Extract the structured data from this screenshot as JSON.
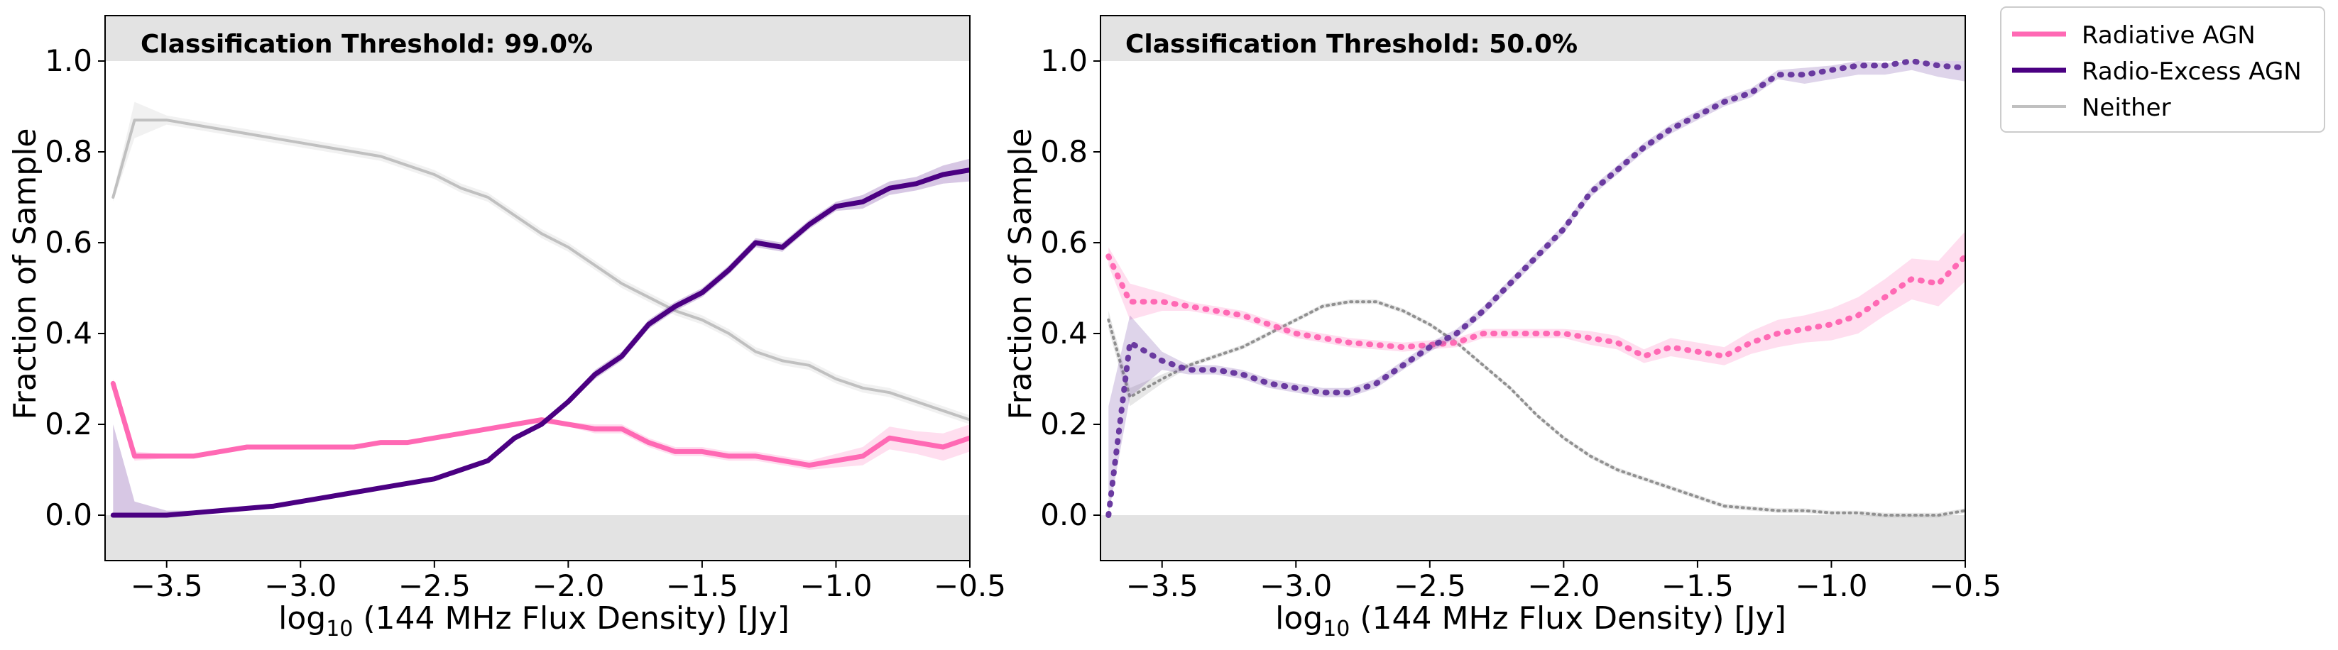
{
  "chart_data": [
    {
      "type": "line",
      "title": "Classification Threshold: 99.0%",
      "xlabel_main": "log",
      "xlabel_sub": "10",
      "xlabel_rest": " (144 MHz Flux Density) [Jy]",
      "ylabel": "Fraction of Sample",
      "xlim": [
        -3.73,
        -0.5
      ],
      "ylim": [
        -0.1,
        1.1
      ],
      "xticks": [
        -3.5,
        -3.0,
        -2.5,
        -2.0,
        -1.5,
        -1.0,
        -0.5
      ],
      "xtick_labels": [
        "−3.5",
        "−3.0",
        "−2.5",
        "−2.0",
        "−1.5",
        "−1.0",
        "−0.5"
      ],
      "yticks": [
        0.0,
        0.2,
        0.4,
        0.6,
        0.8,
        1.0
      ],
      "ytick_labels": [
        "0.0",
        "0.2",
        "0.4",
        "0.6",
        "0.8",
        "1.0"
      ],
      "shaded_regions": [
        {
          "y0": 1.0,
          "y1": 1.1
        },
        {
          "y0": -0.1,
          "y1": 0.0
        }
      ],
      "x": [
        -3.7,
        -3.62,
        -3.5,
        -3.4,
        -3.3,
        -3.2,
        -3.1,
        -3.0,
        -2.9,
        -2.8,
        -2.7,
        -2.6,
        -2.5,
        -2.4,
        -2.3,
        -2.2,
        -2.1,
        -2.0,
        -1.9,
        -1.8,
        -1.7,
        -1.6,
        -1.5,
        -1.4,
        -1.3,
        -1.2,
        -1.1,
        -1.0,
        -0.9,
        -0.8,
        -0.7,
        -0.6,
        -0.5
      ],
      "series": [
        {
          "name": "Neither",
          "style": "solid",
          "color": "#c0c0c0",
          "width": 4,
          "values": [
            0.7,
            0.87,
            0.87,
            0.86,
            0.85,
            0.84,
            0.83,
            0.82,
            0.81,
            0.8,
            0.79,
            0.77,
            0.75,
            0.72,
            0.7,
            0.66,
            0.62,
            0.59,
            0.55,
            0.51,
            0.48,
            0.45,
            0.43,
            0.4,
            0.36,
            0.34,
            0.33,
            0.3,
            0.28,
            0.27,
            0.25,
            0.23,
            0.21
          ],
          "band": [
            0.01,
            0.04,
            0.01,
            0.01,
            0.01,
            0.01,
            0.01,
            0.01,
            0.01,
            0.01,
            0.01,
            0.01,
            0.01,
            0.01,
            0.01,
            0.01,
            0.01,
            0.01,
            0.01,
            0.01,
            0.01,
            0.01,
            0.01,
            0.01,
            0.01,
            0.01,
            0.01,
            0.01,
            0.01,
            0.01,
            0.01,
            0.01,
            0.01
          ]
        },
        {
          "name": "Radiative AGN",
          "style": "solid",
          "color": "#ff69b4",
          "width": 7,
          "values": [
            0.29,
            0.13,
            0.13,
            0.13,
            0.14,
            0.15,
            0.15,
            0.15,
            0.15,
            0.15,
            0.16,
            0.16,
            0.17,
            0.18,
            0.19,
            0.2,
            0.21,
            0.2,
            0.19,
            0.19,
            0.16,
            0.14,
            0.14,
            0.13,
            0.13,
            0.12,
            0.11,
            0.12,
            0.13,
            0.17,
            0.16,
            0.15,
            0.17
          ],
          "band": [
            0.01,
            0.01,
            0.005,
            0.005,
            0.005,
            0.005,
            0.005,
            0.005,
            0.005,
            0.005,
            0.005,
            0.005,
            0.005,
            0.005,
            0.005,
            0.005,
            0.005,
            0.005,
            0.01,
            0.01,
            0.01,
            0.01,
            0.01,
            0.01,
            0.01,
            0.01,
            0.01,
            0.015,
            0.02,
            0.025,
            0.025,
            0.03,
            0.03
          ]
        },
        {
          "name": "Radio-Excess AGN",
          "style": "solid",
          "color": "#4b0082",
          "width": 7,
          "values": [
            0.0,
            0.0,
            0.0,
            0.005,
            0.01,
            0.015,
            0.02,
            0.03,
            0.04,
            0.05,
            0.06,
            0.07,
            0.08,
            0.1,
            0.12,
            0.17,
            0.2,
            0.25,
            0.31,
            0.35,
            0.42,
            0.46,
            0.49,
            0.54,
            0.6,
            0.59,
            0.64,
            0.68,
            0.69,
            0.72,
            0.73,
            0.75,
            0.76
          ],
          "band_upper": [
            0.2,
            0.03,
            0.01,
            0.005,
            0.005,
            0.005,
            0.005,
            0.005,
            0.005,
            0.005,
            0.005,
            0.005,
            0.005,
            0.005,
            0.005,
            0.005,
            0.005,
            0.005,
            0.01,
            0.01,
            0.01,
            0.01,
            0.01,
            0.01,
            0.01,
            0.01,
            0.01,
            0.01,
            0.015,
            0.015,
            0.015,
            0.02,
            0.025
          ],
          "band_lower": [
            0.0,
            0.0,
            0.0,
            0.005,
            0.005,
            0.005,
            0.005,
            0.005,
            0.005,
            0.005,
            0.005,
            0.005,
            0.005,
            0.005,
            0.005,
            0.005,
            0.005,
            0.005,
            0.01,
            0.01,
            0.01,
            0.01,
            0.01,
            0.01,
            0.01,
            0.01,
            0.01,
            0.01,
            0.015,
            0.015,
            0.015,
            0.02,
            0.025
          ]
        }
      ]
    },
    {
      "type": "line",
      "title": "Classification Threshold: 50.0%",
      "xlabel_main": "log",
      "xlabel_sub": "10",
      "xlabel_rest": " (144 MHz Flux Density) [Jy]",
      "ylabel": "Fraction of Sample",
      "xlim": [
        -3.73,
        -0.5
      ],
      "ylim": [
        -0.1,
        1.1
      ],
      "xticks": [
        -3.5,
        -3.0,
        -2.5,
        -2.0,
        -1.5,
        -1.0,
        -0.5
      ],
      "xtick_labels": [
        "−3.5",
        "−3.0",
        "−2.5",
        "−2.0",
        "−1.5",
        "−1.0",
        "−0.5"
      ],
      "yticks": [
        0.0,
        0.2,
        0.4,
        0.6,
        0.8,
        1.0
      ],
      "ytick_labels": [
        "0.0",
        "0.2",
        "0.4",
        "0.6",
        "0.8",
        "1.0"
      ],
      "shaded_regions": [
        {
          "y0": 1.0,
          "y1": 1.1
        },
        {
          "y0": -0.1,
          "y1": 0.0
        }
      ],
      "x": [
        -3.7,
        -3.62,
        -3.5,
        -3.4,
        -3.3,
        -3.2,
        -3.1,
        -3.0,
        -2.9,
        -2.8,
        -2.7,
        -2.6,
        -2.5,
        -2.4,
        -2.3,
        -2.2,
        -2.1,
        -2.0,
        -1.9,
        -1.8,
        -1.7,
        -1.6,
        -1.5,
        -1.4,
        -1.3,
        -1.2,
        -1.1,
        -1.0,
        -0.9,
        -0.8,
        -0.7,
        -0.6,
        -0.5
      ],
      "series": [
        {
          "name": "Neither",
          "style": "dotted",
          "color": "#909090",
          "width": 4,
          "values": [
            0.43,
            0.26,
            0.3,
            0.33,
            0.35,
            0.37,
            0.4,
            0.43,
            0.46,
            0.47,
            0.47,
            0.45,
            0.42,
            0.38,
            0.33,
            0.28,
            0.22,
            0.17,
            0.13,
            0.1,
            0.08,
            0.06,
            0.04,
            0.02,
            0.015,
            0.01,
            0.01,
            0.005,
            0.005,
            0.0,
            0.0,
            0.0,
            0.01
          ],
          "band": [
            0.02,
            0.02,
            0.01,
            0.005,
            0.005,
            0.005,
            0.005,
            0.005,
            0.005,
            0.005,
            0.005,
            0.005,
            0.005,
            0.005,
            0.005,
            0.005,
            0.005,
            0.005,
            0.005,
            0.005,
            0.005,
            0.005,
            0.005,
            0.005,
            0.005,
            0.005,
            0.005,
            0.005,
            0.005,
            0.005,
            0.005,
            0.005,
            0.005
          ]
        },
        {
          "name": "Radiative AGN",
          "style": "dotted",
          "color": "#ff69b4",
          "width": 8,
          "values": [
            0.57,
            0.47,
            0.47,
            0.46,
            0.45,
            0.44,
            0.42,
            0.4,
            0.39,
            0.38,
            0.375,
            0.37,
            0.375,
            0.38,
            0.4,
            0.4,
            0.4,
            0.4,
            0.39,
            0.38,
            0.35,
            0.37,
            0.36,
            0.35,
            0.38,
            0.4,
            0.41,
            0.42,
            0.44,
            0.48,
            0.52,
            0.51,
            0.57
          ],
          "band": [
            0.02,
            0.04,
            0.02,
            0.01,
            0.01,
            0.01,
            0.01,
            0.01,
            0.01,
            0.01,
            0.01,
            0.01,
            0.01,
            0.01,
            0.01,
            0.01,
            0.01,
            0.01,
            0.015,
            0.015,
            0.015,
            0.02,
            0.02,
            0.02,
            0.025,
            0.03,
            0.03,
            0.035,
            0.04,
            0.04,
            0.045,
            0.05,
            0.055
          ]
        },
        {
          "name": "Radio-Excess AGN",
          "style": "dotted",
          "color": "#6a3aa0",
          "width": 8,
          "values": [
            0.0,
            0.38,
            0.34,
            0.32,
            0.32,
            0.31,
            0.29,
            0.28,
            0.27,
            0.27,
            0.29,
            0.33,
            0.37,
            0.4,
            0.45,
            0.51,
            0.57,
            0.63,
            0.71,
            0.76,
            0.81,
            0.85,
            0.88,
            0.91,
            0.93,
            0.97,
            0.97,
            0.98,
            0.99,
            0.99,
            1.0,
            0.99,
            0.985
          ],
          "band_upper": [
            0.24,
            0.06,
            0.02,
            0.01,
            0.01,
            0.01,
            0.01,
            0.01,
            0.01,
            0.01,
            0.01,
            0.01,
            0.01,
            0.01,
            0.01,
            0.01,
            0.01,
            0.01,
            0.01,
            0.01,
            0.01,
            0.01,
            0.01,
            0.01,
            0.01,
            0.01,
            0.015,
            0.01,
            0.01,
            0.005,
            0.0,
            0.01,
            0.015
          ],
          "band_lower": [
            0.0,
            0.12,
            0.02,
            0.01,
            0.01,
            0.01,
            0.01,
            0.01,
            0.01,
            0.01,
            0.01,
            0.01,
            0.01,
            0.01,
            0.01,
            0.01,
            0.01,
            0.01,
            0.01,
            0.01,
            0.01,
            0.01,
            0.01,
            0.01,
            0.01,
            0.01,
            0.02,
            0.02,
            0.02,
            0.02,
            0.02,
            0.025,
            0.03
          ]
        }
      ]
    }
  ],
  "legend": {
    "placement": "outside-top-right",
    "entries": [
      {
        "label": "Radiative AGN",
        "color": "#ff69b4",
        "style": "solid",
        "width": 7
      },
      {
        "label": "Radio-Excess AGN",
        "color": "#4b0082",
        "style": "solid",
        "width": 7
      },
      {
        "label": "Neither",
        "color": "#c0c0c0",
        "style": "solid",
        "width": 4
      }
    ]
  },
  "colors": {
    "shade": "#e3e3e3",
    "axis": "#000000"
  }
}
